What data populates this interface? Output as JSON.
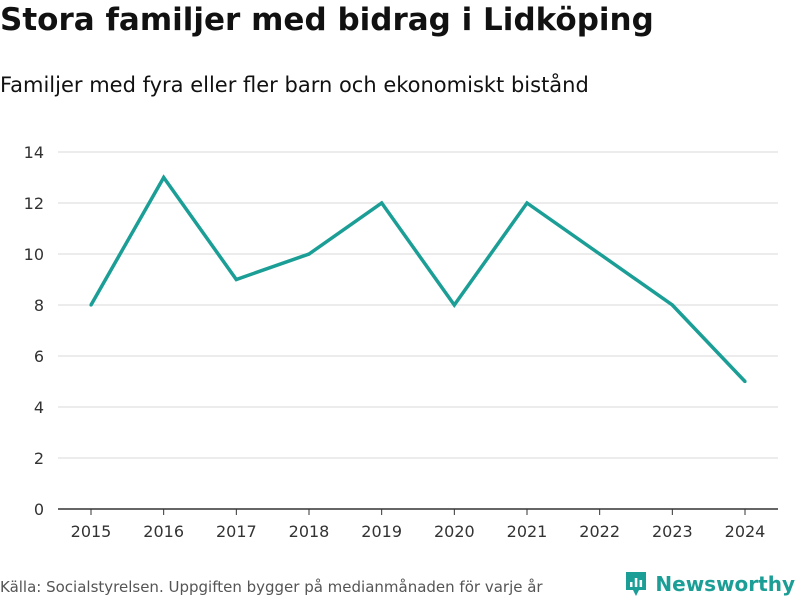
{
  "header": {
    "title": "Stora familjer med bidrag i Lidköping",
    "subtitle": "Familjer med fyra eller fler barn och ekonomiskt bistånd"
  },
  "footer": {
    "source": "Källa: Socialstyrelsen. Uppgiften bygger på medianmånaden för varje år",
    "brand": "Newsworthy"
  },
  "colors": {
    "line": "#1b9e96",
    "grid": "#d9d9d9",
    "axis": "#333333",
    "brand": "#1b9e96"
  },
  "icons": {
    "brand_logo": "newsworthy-chart-icon"
  },
  "chart_data": {
    "type": "line",
    "title": "Stora familjer med bidrag i Lidköping",
    "subtitle": "Familjer med fyra eller fler barn och ekonomiskt bistånd",
    "xlabel": "",
    "ylabel": "",
    "categories": [
      "2015",
      "2016",
      "2017",
      "2018",
      "2019",
      "2020",
      "2021",
      "2022",
      "2023",
      "2024"
    ],
    "series": [
      {
        "name": "Familjer med fyra eller fler barn och ekonomiskt bistånd",
        "values": [
          8,
          13,
          9,
          10,
          12,
          8,
          12,
          10,
          8,
          5
        ]
      }
    ],
    "ylim": [
      0,
      14
    ],
    "yticks": [
      0,
      2,
      4,
      6,
      8,
      10,
      12,
      14
    ],
    "grid": true,
    "legend": "none"
  }
}
